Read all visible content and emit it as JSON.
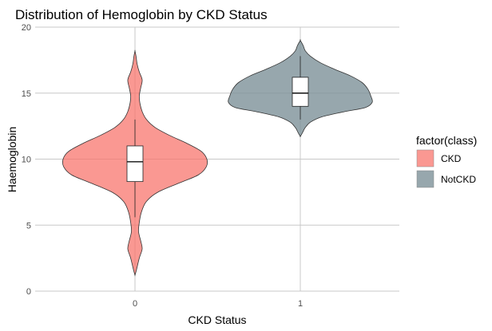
{
  "chart_data": {
    "type": "violin",
    "title": "Distribution of Hemoglobin by CKD Status",
    "xlabel": "CKD Status",
    "ylabel": "Haemoglobin",
    "ylim": [
      0,
      20
    ],
    "yticks": [
      0,
      5,
      10,
      15,
      20
    ],
    "categories": [
      "0",
      "1"
    ],
    "grid": true,
    "legend": {
      "title": "factor(class)",
      "position": "right",
      "entries": [
        {
          "label": "CKD",
          "color": "#f8766d"
        },
        {
          "label": "NotCKD",
          "color": "#7d9199"
        }
      ]
    },
    "series": [
      {
        "name": "CKD",
        "category": "0",
        "color": "#f8766d",
        "fill_opacity": 0.75,
        "box": {
          "q1": 8.3,
          "median": 9.8,
          "q3": 11.0,
          "whisker_low": 5.6,
          "whisker_high": 13.0
        },
        "density": [
          [
            1.2,
            0.0
          ],
          [
            1.6,
            0.02
          ],
          [
            2.5,
            0.06
          ],
          [
            3.2,
            0.1
          ],
          [
            3.8,
            0.08
          ],
          [
            4.5,
            0.05
          ],
          [
            5.2,
            0.06
          ],
          [
            6.0,
            0.09
          ],
          [
            6.8,
            0.16
          ],
          [
            7.5,
            0.32
          ],
          [
            8.2,
            0.62
          ],
          [
            8.8,
            0.88
          ],
          [
            9.4,
            0.99
          ],
          [
            10.0,
            1.0
          ],
          [
            10.6,
            0.92
          ],
          [
            11.2,
            0.72
          ],
          [
            11.8,
            0.48
          ],
          [
            12.4,
            0.28
          ],
          [
            13.0,
            0.16
          ],
          [
            13.6,
            0.1
          ],
          [
            14.2,
            0.07
          ],
          [
            14.8,
            0.06
          ],
          [
            15.4,
            0.08
          ],
          [
            16.0,
            0.1
          ],
          [
            16.6,
            0.06
          ],
          [
            17.2,
            0.03
          ],
          [
            17.8,
            0.015
          ],
          [
            18.2,
            0.0
          ]
        ]
      },
      {
        "name": "NotCKD",
        "category": "1",
        "color": "#7d9199",
        "fill_opacity": 0.8,
        "box": {
          "q1": 14.0,
          "median": 15.0,
          "q3": 16.2,
          "whisker_low": 13.0,
          "whisker_high": 17.8
        },
        "density": [
          [
            11.7,
            0.0
          ],
          [
            12.0,
            0.03
          ],
          [
            12.4,
            0.07
          ],
          [
            12.8,
            0.14
          ],
          [
            13.2,
            0.3
          ],
          [
            13.6,
            0.62
          ],
          [
            13.9,
            0.9
          ],
          [
            14.3,
            1.0
          ],
          [
            14.8,
            0.98
          ],
          [
            15.3,
            0.94
          ],
          [
            15.8,
            0.86
          ],
          [
            16.3,
            0.7
          ],
          [
            16.8,
            0.48
          ],
          [
            17.3,
            0.28
          ],
          [
            17.8,
            0.14
          ],
          [
            18.2,
            0.07
          ],
          [
            18.6,
            0.04
          ],
          [
            19.0,
            0.0
          ]
        ]
      }
    ]
  }
}
